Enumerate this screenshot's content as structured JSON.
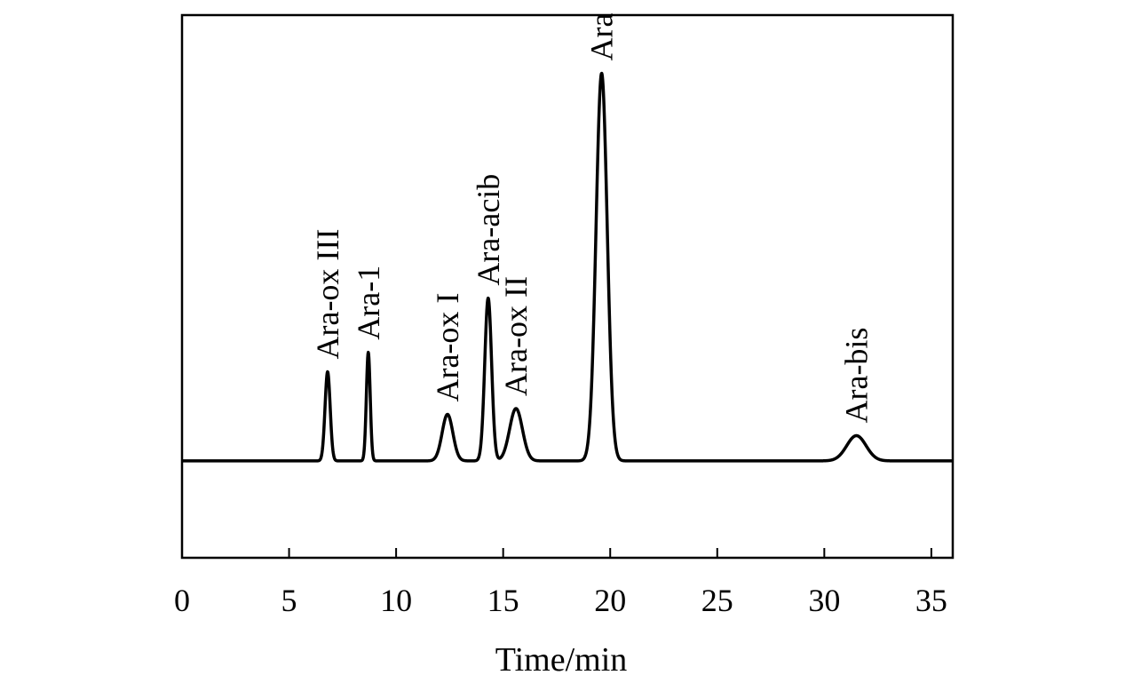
{
  "chart_data": {
    "type": "line",
    "title": "",
    "xlabel": "Time/min",
    "ylabel": "",
    "xlim": [
      0,
      36
    ],
    "ylim": [
      -0.25,
      1.15
    ],
    "xticks": [
      0,
      5,
      10,
      15,
      20,
      25,
      30,
      35
    ],
    "xtick_labels": [
      "0",
      "5",
      "10",
      "15",
      "20",
      "25",
      "30",
      "35"
    ],
    "grid": false,
    "legend": "none",
    "baseline": 0,
    "line_color": "#000000",
    "peaks": [
      {
        "label": "Ara-ox III",
        "time": 6.8,
        "height": 0.23,
        "width": 0.12
      },
      {
        "label": "Ara-1",
        "time": 8.7,
        "height": 0.28,
        "width": 0.09
      },
      {
        "label": "Ara-ox I",
        "time": 12.4,
        "height": 0.12,
        "width": 0.25
      },
      {
        "label": "Ara-acib",
        "time": 14.3,
        "height": 0.42,
        "width": 0.16
      },
      {
        "label": "Ara-ox II",
        "time": 15.6,
        "height": 0.135,
        "width": 0.3
      },
      {
        "label": "Ara",
        "time": 19.6,
        "height": 1.0,
        "width": 0.26
      },
      {
        "label": "Ara-bis",
        "time": 31.5,
        "height": 0.065,
        "width": 0.45
      }
    ]
  }
}
